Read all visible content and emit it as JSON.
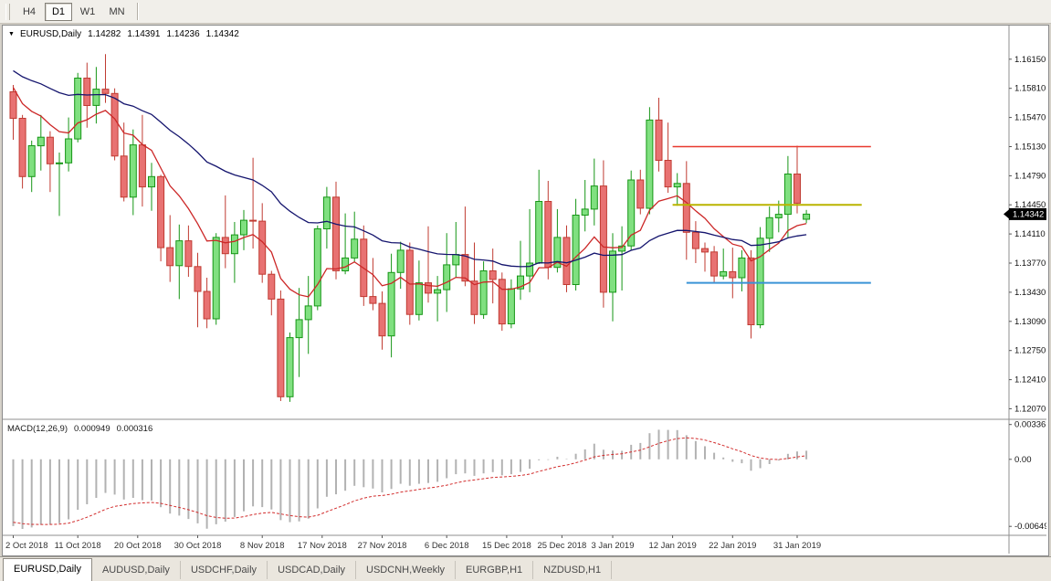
{
  "toolbar": {
    "timeframes": [
      {
        "label": "H4",
        "active": false
      },
      {
        "label": "D1",
        "active": true
      },
      {
        "label": "W1",
        "active": false
      },
      {
        "label": "MN",
        "active": false
      }
    ]
  },
  "chart_header": {
    "dropdown_icon": "▼",
    "symbol": "EURUSD,Daily",
    "open": "1.14282",
    "high": "1.14391",
    "low": "1.14236",
    "close": "1.14342"
  },
  "macd_header": {
    "label": "MACD(12,26,9)",
    "main_value": "0.000949",
    "signal_value": "0.000316"
  },
  "tabs": [
    {
      "label": "EURUSD,Daily",
      "active": true
    },
    {
      "label": "AUDUSD,Daily",
      "active": false
    },
    {
      "label": "USDCHF,Daily",
      "active": false
    },
    {
      "label": "USDCAD,Daily",
      "active": false
    },
    {
      "label": "USDCNH,Weekly",
      "active": false
    },
    {
      "label": "EURGBP,H1",
      "active": false
    },
    {
      "label": "NZDUSD,H1",
      "active": false
    }
  ],
  "chart_data": {
    "type": "candlestick",
    "title": "EURUSD,Daily",
    "current_price": 1.14342,
    "y_axis": {
      "min": 1.12,
      "max": 1.165,
      "ticks": [
        1.1615,
        1.1581,
        1.1547,
        1.1513,
        1.1479,
        1.1445,
        1.1411,
        1.1377,
        1.1343,
        1.1309,
        1.1275,
        1.1241,
        1.1207
      ]
    },
    "x_axis": {
      "tick_labels": [
        "2 Oct 2018",
        "11 Oct 2018",
        "20 Oct 2018",
        "30 Oct 2018",
        "8 Nov 2018",
        "17 Nov 2018",
        "27 Nov 2018",
        "6 Dec 2018",
        "15 Dec 2018",
        "25 Dec 2018",
        "3 Jan 2019",
        "12 Jan 2019",
        "22 Jan 2019",
        "31 Jan 2019"
      ],
      "tick_indices": [
        0,
        7,
        13.5,
        20,
        27,
        33.5,
        40,
        47,
        53.5,
        59.5,
        65,
        71.5,
        78,
        85
      ]
    },
    "candles": [
      [
        1.1577,
        1.1585,
        1.1521,
        1.1546
      ],
      [
        1.1546,
        1.155,
        1.1464,
        1.1478
      ],
      [
        1.1478,
        1.152,
        1.146,
        1.1514
      ],
      [
        1.1514,
        1.155,
        1.1485,
        1.1524
      ],
      [
        1.1524,
        1.1531,
        1.146,
        1.1493
      ],
      [
        1.1493,
        1.1506,
        1.1432,
        1.1494
      ],
      [
        1.1494,
        1.1547,
        1.1484,
        1.1522
      ],
      [
        1.1522,
        1.1599,
        1.1518,
        1.1593
      ],
      [
        1.1593,
        1.1611,
        1.1535,
        1.1561
      ],
      [
        1.1561,
        1.1606,
        1.154,
        1.158
      ],
      [
        1.158,
        1.1621,
        1.1564,
        1.1575
      ],
      [
        1.1575,
        1.1581,
        1.1497,
        1.1502
      ],
      [
        1.1502,
        1.1541,
        1.1449,
        1.1454
      ],
      [
        1.1454,
        1.1533,
        1.1433,
        1.1515
      ],
      [
        1.1515,
        1.155,
        1.1443,
        1.1466
      ],
      [
        1.1466,
        1.1494,
        1.1438,
        1.1478
      ],
      [
        1.1478,
        1.148,
        1.1379,
        1.1395
      ],
      [
        1.1395,
        1.1433,
        1.1355,
        1.1374
      ],
      [
        1.1374,
        1.1422,
        1.1335,
        1.1403
      ],
      [
        1.1403,
        1.1421,
        1.1361,
        1.1373
      ],
      [
        1.1373,
        1.1389,
        1.1302,
        1.1344
      ],
      [
        1.1344,
        1.136,
        1.1301,
        1.1312
      ],
      [
        1.1312,
        1.1412,
        1.1305,
        1.1407
      ],
      [
        1.1407,
        1.1456,
        1.1371,
        1.1388
      ],
      [
        1.1388,
        1.1425,
        1.1354,
        1.141
      ],
      [
        1.141,
        1.1439,
        1.1392,
        1.1427
      ],
      [
        1.1427,
        1.15,
        1.1394,
        1.1426
      ],
      [
        1.1426,
        1.1447,
        1.1354,
        1.1364
      ],
      [
        1.1364,
        1.1368,
        1.1316,
        1.1335
      ],
      [
        1.1335,
        1.1345,
        1.1216,
        1.1221
      ],
      [
        1.1221,
        1.1296,
        1.1215,
        1.129
      ],
      [
        1.129,
        1.1348,
        1.1244,
        1.1311
      ],
      [
        1.1311,
        1.1362,
        1.1271,
        1.1327
      ],
      [
        1.1327,
        1.1421,
        1.1322,
        1.1417
      ],
      [
        1.1417,
        1.1466,
        1.1394,
        1.1454
      ],
      [
        1.1454,
        1.1472,
        1.1358,
        1.1368
      ],
      [
        1.1368,
        1.1435,
        1.1364,
        1.1383
      ],
      [
        1.1383,
        1.1437,
        1.1378,
        1.1405
      ],
      [
        1.1405,
        1.1421,
        1.1327,
        1.1338
      ],
      [
        1.1338,
        1.1383,
        1.1322,
        1.133
      ],
      [
        1.133,
        1.1344,
        1.1276,
        1.1292
      ],
      [
        1.1292,
        1.1388,
        1.1267,
        1.1366
      ],
      [
        1.1366,
        1.1402,
        1.1347,
        1.1392
      ],
      [
        1.1392,
        1.1401,
        1.1305,
        1.1317
      ],
      [
        1.1317,
        1.138,
        1.131,
        1.1354
      ],
      [
        1.1354,
        1.142,
        1.1331,
        1.1342
      ],
      [
        1.1342,
        1.1362,
        1.1309,
        1.1346
      ],
      [
        1.1346,
        1.1412,
        1.132,
        1.1375
      ],
      [
        1.1375,
        1.1425,
        1.136,
        1.1387
      ],
      [
        1.1387,
        1.1443,
        1.135,
        1.1356
      ],
      [
        1.1356,
        1.1401,
        1.1306,
        1.1317
      ],
      [
        1.1317,
        1.1379,
        1.1312,
        1.1368
      ],
      [
        1.1368,
        1.1394,
        1.133,
        1.1358
      ],
      [
        1.1358,
        1.1366,
        1.1298,
        1.1306
      ],
      [
        1.1306,
        1.1358,
        1.1301,
        1.1347
      ],
      [
        1.1347,
        1.1403,
        1.1334,
        1.1362
      ],
      [
        1.1362,
        1.144,
        1.1343,
        1.1377
      ],
      [
        1.1377,
        1.1486,
        1.1376,
        1.1449
      ],
      [
        1.1449,
        1.1473,
        1.1358,
        1.1372
      ],
      [
        1.1372,
        1.144,
        1.1366,
        1.1407
      ],
      [
        1.1407,
        1.1421,
        1.1343,
        1.1352
      ],
      [
        1.1352,
        1.1452,
        1.1345,
        1.1433
      ],
      [
        1.1433,
        1.1474,
        1.1414,
        1.144
      ],
      [
        1.144,
        1.1499,
        1.1421,
        1.1467
      ],
      [
        1.1467,
        1.1497,
        1.1325,
        1.1343
      ],
      [
        1.1343,
        1.1412,
        1.1309,
        1.1391
      ],
      [
        1.1391,
        1.142,
        1.1345,
        1.1397
      ],
      [
        1.1397,
        1.1485,
        1.1392,
        1.1474
      ],
      [
        1.1474,
        1.1486,
        1.1434,
        1.1441
      ],
      [
        1.1441,
        1.1559,
        1.1434,
        1.1544
      ],
      [
        1.1544,
        1.157,
        1.1484,
        1.1497
      ],
      [
        1.1497,
        1.1541,
        1.1459,
        1.1466
      ],
      [
        1.1466,
        1.1482,
        1.1444,
        1.147
      ],
      [
        1.147,
        1.1496,
        1.1381,
        1.1413
      ],
      [
        1.1413,
        1.1426,
        1.1377,
        1.1394
      ],
      [
        1.1394,
        1.1401,
        1.1367,
        1.139
      ],
      [
        1.139,
        1.1397,
        1.1353,
        1.1362
      ],
      [
        1.1362,
        1.1394,
        1.1358,
        1.1367
      ],
      [
        1.1367,
        1.1395,
        1.1336,
        1.136
      ],
      [
        1.136,
        1.1392,
        1.1344,
        1.1383
      ],
      [
        1.1383,
        1.1392,
        1.1289,
        1.1305
      ],
      [
        1.1305,
        1.1419,
        1.1301,
        1.1406
      ],
      [
        1.1406,
        1.1443,
        1.139,
        1.143
      ],
      [
        1.143,
        1.145,
        1.1413,
        1.1434
      ],
      [
        1.1434,
        1.1502,
        1.1406,
        1.1481
      ],
      [
        1.1481,
        1.1514,
        1.1435,
        1.1447
      ],
      [
        1.14282,
        1.14391,
        1.14236,
        1.14342
      ]
    ],
    "colors": {
      "up_fill": "#80e080",
      "up_border": "#169616",
      "down_fill": "#e87272",
      "down_border": "#c03b32",
      "background": "#ffffff",
      "axis_text": "#111111",
      "date_text": "#333333",
      "separator": "#8f8f8f",
      "current_price_bg": "#000000",
      "current_price_text": "#ffffff"
    },
    "moving_averages": [
      {
        "type": "ema",
        "period": 10,
        "seed": 1.159,
        "color": "#cc2727",
        "width": 1.3
      },
      {
        "type": "ema",
        "period": 34,
        "seed": 1.1605,
        "color": "#15156e",
        "width": 1.3
      }
    ],
    "horizontal_lines": [
      {
        "price": 1.1513,
        "start_index": 71.5,
        "end_index": 93,
        "color": "#e8392d",
        "width": 1.4
      },
      {
        "price": 1.1445,
        "start_index": 71.5,
        "end_index": 92,
        "color": "#b9b400",
        "width": 2
      },
      {
        "price": 1.1354,
        "start_index": 73,
        "end_index": 93,
        "color": "#3a93d6",
        "width": 2
      }
    ],
    "macd": {
      "fast_period": 12,
      "slow_period": 26,
      "signal_period": 9,
      "displayed_main": 0.000949,
      "displayed_signal": 0.000316,
      "seed_fast": 1.1578,
      "seed_slow": 1.1645,
      "seed_signal": -0.006,
      "min": -0.007,
      "max": 0.0036,
      "bar_color": "#b2b2b2",
      "signal_color": "#d22d2d",
      "y_ticks": [
        {
          "label": "0.00336",
          "value": 0.00336
        },
        {
          "label": "0.00",
          "value": 0
        },
        {
          "label": "-0.00649",
          "value": -0.00649
        }
      ]
    }
  }
}
